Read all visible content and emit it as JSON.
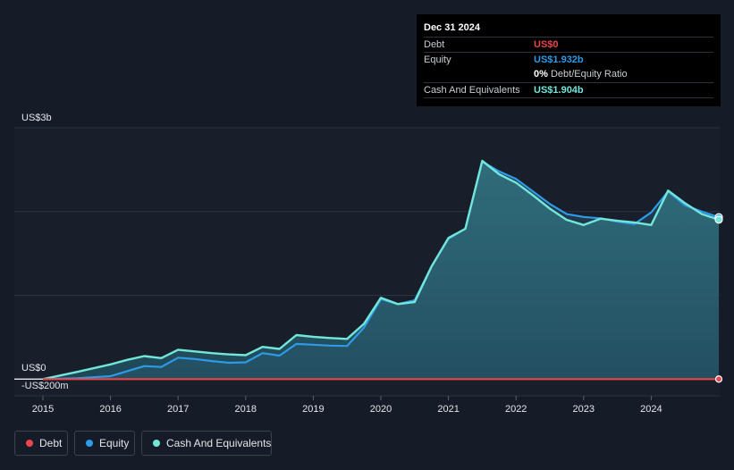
{
  "tooltip": {
    "date": "Dec 31 2024",
    "rows": [
      {
        "label": "Debt",
        "value": "US$0",
        "color": "#e8474b"
      },
      {
        "label": "Equity",
        "value": "US$1.932b",
        "color": "#2e9be8"
      },
      {
        "label": "",
        "value": "0%",
        "suffix": "Debt/Equity Ratio",
        "color": "#ffffff"
      },
      {
        "label": "Cash And Equivalents",
        "value": "US$1.904b",
        "color": "#73e6da"
      }
    ]
  },
  "legend": [
    {
      "label": "Debt",
      "color": "#e8474b"
    },
    {
      "label": "Equity",
      "color": "#2e9be8"
    },
    {
      "label": "Cash And Equivalents",
      "color": "#73e6da"
    }
  ],
  "chart_data": {
    "type": "area",
    "ylim": [
      -200,
      3000
    ],
    "y_tick_labels": [
      {
        "value": 3000,
        "label": "US$3b"
      },
      {
        "value": 0,
        "label": "US$0"
      },
      {
        "value": -200,
        "label": "-US$200m"
      }
    ],
    "x_tick_labels": [
      "2015",
      "2016",
      "2017",
      "2018",
      "2019",
      "2020",
      "2021",
      "2022",
      "2023",
      "2024"
    ],
    "xlim": [
      2014.97,
      2025.0
    ],
    "grid": true,
    "legend_position": "bottom-left",
    "series": [
      {
        "name": "Debt",
        "color": "#e8474b",
        "points": [
          [
            2015.0,
            0
          ],
          [
            2016.0,
            0
          ],
          [
            2017.0,
            0
          ],
          [
            2018.0,
            0
          ],
          [
            2019.0,
            0
          ],
          [
            2020.0,
            0
          ],
          [
            2021.0,
            0
          ],
          [
            2022.0,
            0
          ],
          [
            2023.0,
            0
          ],
          [
            2024.0,
            0
          ],
          [
            2025.0,
            0
          ]
        ]
      },
      {
        "name": "Equity",
        "color": "#2e9be8",
        "points": [
          [
            2015.0,
            0
          ],
          [
            2015.5,
            10
          ],
          [
            2016.0,
            35
          ],
          [
            2016.25,
            95
          ],
          [
            2016.5,
            155
          ],
          [
            2016.75,
            145
          ],
          [
            2017.0,
            255
          ],
          [
            2017.25,
            240
          ],
          [
            2017.5,
            215
          ],
          [
            2017.75,
            195
          ],
          [
            2018.0,
            200
          ],
          [
            2018.25,
            310
          ],
          [
            2018.5,
            280
          ],
          [
            2018.75,
            420
          ],
          [
            2019.0,
            410
          ],
          [
            2019.25,
            400
          ],
          [
            2019.5,
            395
          ],
          [
            2019.75,
            615
          ],
          [
            2020.0,
            955
          ],
          [
            2020.25,
            895
          ],
          [
            2020.5,
            940
          ],
          [
            2020.75,
            1345
          ],
          [
            2021.0,
            1675
          ],
          [
            2021.25,
            1795
          ],
          [
            2021.5,
            2595
          ],
          [
            2021.75,
            2480
          ],
          [
            2022.0,
            2390
          ],
          [
            2022.25,
            2240
          ],
          [
            2022.5,
            2090
          ],
          [
            2022.75,
            1970
          ],
          [
            2023.0,
            1935
          ],
          [
            2023.25,
            1920
          ],
          [
            2023.5,
            1880
          ],
          [
            2023.75,
            1850
          ],
          [
            2024.0,
            1990
          ],
          [
            2024.25,
            2240
          ],
          [
            2024.5,
            2075
          ],
          [
            2024.75,
            2000
          ],
          [
            2025.0,
            1932
          ]
        ]
      },
      {
        "name": "Cash And Equivalents",
        "color": "#73e6da",
        "points": [
          [
            2015.0,
            0
          ],
          [
            2015.5,
            85
          ],
          [
            2016.0,
            175
          ],
          [
            2016.25,
            230
          ],
          [
            2016.5,
            275
          ],
          [
            2016.75,
            250
          ],
          [
            2017.0,
            350
          ],
          [
            2017.25,
            330
          ],
          [
            2017.5,
            310
          ],
          [
            2017.75,
            295
          ],
          [
            2018.0,
            285
          ],
          [
            2018.25,
            385
          ],
          [
            2018.5,
            360
          ],
          [
            2018.75,
            525
          ],
          [
            2019.0,
            505
          ],
          [
            2019.25,
            490
          ],
          [
            2019.5,
            480
          ],
          [
            2019.75,
            660
          ],
          [
            2020.0,
            970
          ],
          [
            2020.25,
            895
          ],
          [
            2020.5,
            920
          ],
          [
            2020.75,
            1345
          ],
          [
            2021.0,
            1685
          ],
          [
            2021.25,
            1795
          ],
          [
            2021.5,
            2605
          ],
          [
            2021.75,
            2445
          ],
          [
            2022.0,
            2345
          ],
          [
            2022.25,
            2195
          ],
          [
            2022.5,
            2035
          ],
          [
            2022.75,
            1900
          ],
          [
            2023.0,
            1840
          ],
          [
            2023.25,
            1915
          ],
          [
            2023.5,
            1890
          ],
          [
            2023.75,
            1870
          ],
          [
            2024.0,
            1840
          ],
          [
            2024.25,
            2250
          ],
          [
            2024.5,
            2100
          ],
          [
            2024.75,
            1970
          ],
          [
            2025.0,
            1904
          ]
        ]
      }
    ]
  }
}
